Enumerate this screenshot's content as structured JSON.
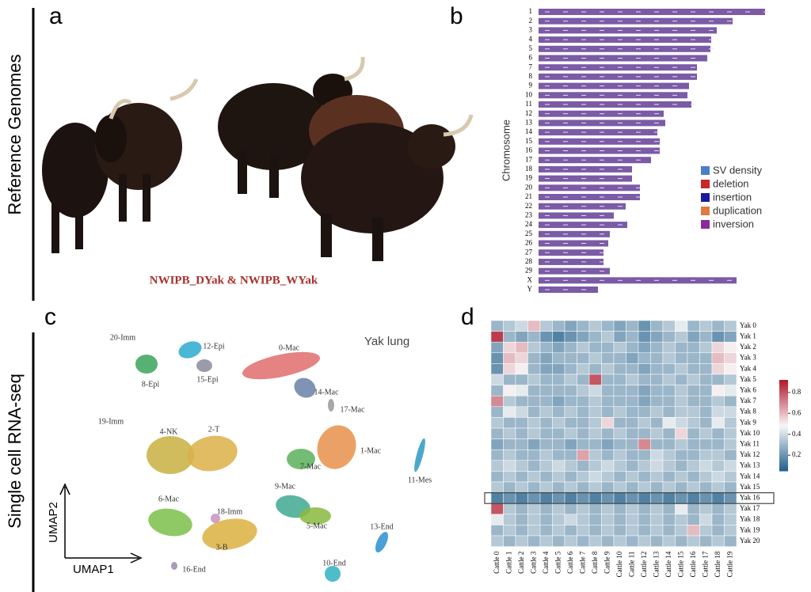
{
  "panel_letters": [
    "a",
    "b",
    "c",
    "d"
  ],
  "side_labels": [
    "Reference Genomes",
    "Single cell RNA-seq"
  ],
  "image_caption": "NWIPB_DYak  &  NWIPB_WYak",
  "chart_data": [
    {
      "type": "bar",
      "orientation": "horizontal",
      "ylabel": "Chromosome",
      "color": "#7b5aa6",
      "categories": [
        "1",
        "2",
        "3",
        "4",
        "5",
        "6",
        "7",
        "8",
        "9",
        "10",
        "11",
        "12",
        "13",
        "14",
        "15",
        "16",
        "17",
        "18",
        "19",
        "20",
        "21",
        "22",
        "23",
        "24",
        "25",
        "26",
        "27",
        "28",
        "29",
        "X",
        "Y"
      ],
      "values": [
        286,
        245,
        225,
        218,
        217,
        213,
        200,
        200,
        190,
        188,
        193,
        158,
        160,
        150,
        153,
        153,
        142,
        118,
        118,
        128,
        128,
        110,
        95,
        112,
        90,
        88,
        82,
        82,
        90,
        250,
        75
      ],
      "legend": [
        {
          "name": "SV density",
          "color": "#4a7fc8"
        },
        {
          "name": "deletion",
          "color": "#c82828"
        },
        {
          "name": "insertion",
          "color": "#1a1aa0"
        },
        {
          "name": "duplication",
          "color": "#e07840"
        },
        {
          "name": "inversion",
          "color": "#8a2a9a"
        }
      ]
    },
    {
      "type": "umap",
      "title": "Yak lung",
      "xlabel": "UMAP1",
      "ylabel": "UMAP2",
      "clusters": [
        {
          "name": "20-Imm",
          "color": "#333333"
        },
        {
          "name": "12-Epi",
          "color": "#2aaad0"
        },
        {
          "name": "8-Epi",
          "color": "#3aa35a"
        },
        {
          "name": "15-Epi",
          "color": "#8a8a9a"
        },
        {
          "name": "0-Mac",
          "color": "#e06c6c"
        },
        {
          "name": "14-Mac",
          "color": "#6a80a8"
        },
        {
          "name": "17-Mac",
          "color": "#999999"
        },
        {
          "name": "19-Imm",
          "color": "#555555"
        },
        {
          "name": "4-NK",
          "color": "#c8b040"
        },
        {
          "name": "2-T",
          "color": "#dcb048"
        },
        {
          "name": "1-Mac",
          "color": "#e8914a"
        },
        {
          "name": "7-Mac",
          "color": "#5ab05a"
        },
        {
          "name": "11-Mes",
          "color": "#2a9ac0"
        },
        {
          "name": "9-Mac",
          "color": "#40a890"
        },
        {
          "name": "5-Mac",
          "color": "#8ab840"
        },
        {
          "name": "6-Mac",
          "color": "#7bbf4a"
        },
        {
          "name": "18-Imm",
          "color": "#c890c0"
        },
        {
          "name": "3-B",
          "color": "#dcb040"
        },
        {
          "name": "13-End",
          "color": "#2a8fd0"
        },
        {
          "name": "16-End",
          "color": "#9a8aa8"
        },
        {
          "name": "10-End",
          "color": "#30b0c0"
        }
      ]
    },
    {
      "type": "heatmap",
      "rows": [
        "Yak 0",
        "Yak 1",
        "Yak 2",
        "Yak 3",
        "Yak 4",
        "Yak 5",
        "Yak 6",
        "Yak 7",
        "Yak 8",
        "Yak 9",
        "Yak 10",
        "Yak 11",
        "Yak 12",
        "Yak 13",
        "Yak 14",
        "Yak 15",
        "Yak 16",
        "Yak 17",
        "Yak 18",
        "Yak 19",
        "Yak 20"
      ],
      "columns": [
        "Cattle 0",
        "Cattle 1",
        "Cattle 2",
        "Cattle 3",
        "Cattle 4",
        "Cattle 5",
        "Cattle 6",
        "Cattle 7",
        "Cattle 8",
        "Cattle 9",
        "Cattle 10",
        "Cattle 11",
        "Cattle 12",
        "Cattle 13",
        "Cattle 14",
        "Cattle 15",
        "Cattle 16",
        "Cattle 17",
        "Cattle 18",
        "Cattle 19"
      ],
      "values": [
        [
          0.3,
          0.35,
          0.4,
          0.6,
          0.35,
          0.3,
          0.25,
          0.3,
          0.35,
          0.3,
          0.25,
          0.3,
          0.2,
          0.3,
          0.35,
          0.45,
          0.3,
          0.35,
          0.3,
          0.35
        ],
        [
          0.85,
          0.3,
          0.25,
          0.3,
          0.2,
          0.15,
          0.2,
          0.25,
          0.3,
          0.35,
          0.25,
          0.3,
          0.2,
          0.25,
          0.3,
          0.35,
          0.25,
          0.3,
          0.2,
          0.25
        ],
        [
          0.25,
          0.55,
          0.6,
          0.35,
          0.3,
          0.25,
          0.3,
          0.35,
          0.3,
          0.3,
          0.35,
          0.3,
          0.25,
          0.3,
          0.35,
          0.3,
          0.3,
          0.35,
          0.55,
          0.5
        ],
        [
          0.2,
          0.6,
          0.55,
          0.3,
          0.25,
          0.3,
          0.3,
          0.3,
          0.35,
          0.3,
          0.3,
          0.25,
          0.3,
          0.3,
          0.35,
          0.3,
          0.3,
          0.3,
          0.6,
          0.55
        ],
        [
          0.2,
          0.55,
          0.5,
          0.3,
          0.25,
          0.25,
          0.3,
          0.35,
          0.3,
          0.35,
          0.3,
          0.3,
          0.25,
          0.3,
          0.3,
          0.35,
          0.3,
          0.3,
          0.55,
          0.5
        ],
        [
          0.4,
          0.3,
          0.3,
          0.35,
          0.3,
          0.3,
          0.35,
          0.3,
          0.8,
          0.3,
          0.3,
          0.35,
          0.3,
          0.3,
          0.35,
          0.3,
          0.35,
          0.3,
          0.3,
          0.35
        ],
        [
          0.3,
          0.5,
          0.45,
          0.3,
          0.3,
          0.3,
          0.3,
          0.35,
          0.4,
          0.3,
          0.3,
          0.3,
          0.25,
          0.3,
          0.3,
          0.35,
          0.3,
          0.3,
          0.5,
          0.45
        ],
        [
          0.7,
          0.35,
          0.3,
          0.3,
          0.3,
          0.25,
          0.3,
          0.3,
          0.35,
          0.3,
          0.3,
          0.3,
          0.25,
          0.3,
          0.3,
          0.35,
          0.3,
          0.3,
          0.35,
          0.3
        ],
        [
          0.3,
          0.45,
          0.4,
          0.3,
          0.35,
          0.3,
          0.35,
          0.3,
          0.35,
          0.3,
          0.35,
          0.3,
          0.3,
          0.35,
          0.3,
          0.35,
          0.35,
          0.3,
          0.4,
          0.4
        ],
        [
          0.35,
          0.3,
          0.3,
          0.35,
          0.3,
          0.35,
          0.3,
          0.3,
          0.35,
          0.55,
          0.3,
          0.3,
          0.35,
          0.3,
          0.45,
          0.4,
          0.35,
          0.3,
          0.45,
          0.35
        ],
        [
          0.3,
          0.35,
          0.3,
          0.35,
          0.3,
          0.3,
          0.35,
          0.3,
          0.35,
          0.3,
          0.35,
          0.3,
          0.3,
          0.35,
          0.3,
          0.55,
          0.3,
          0.35,
          0.3,
          0.35
        ],
        [
          0.25,
          0.3,
          0.3,
          0.25,
          0.3,
          0.3,
          0.25,
          0.3,
          0.3,
          0.25,
          0.3,
          0.3,
          0.7,
          0.3,
          0.3,
          0.35,
          0.3,
          0.3,
          0.3,
          0.35
        ],
        [
          0.3,
          0.35,
          0.3,
          0.3,
          0.35,
          0.3,
          0.3,
          0.65,
          0.35,
          0.3,
          0.35,
          0.3,
          0.3,
          0.4,
          0.35,
          0.3,
          0.3,
          0.35,
          0.35,
          0.3
        ],
        [
          0.35,
          0.4,
          0.35,
          0.3,
          0.35,
          0.4,
          0.35,
          0.3,
          0.35,
          0.4,
          0.35,
          0.3,
          0.35,
          0.4,
          0.35,
          0.3,
          0.35,
          0.4,
          0.35,
          0.4
        ],
        [
          0.3,
          0.35,
          0.3,
          0.35,
          0.3,
          0.35,
          0.3,
          0.35,
          0.4,
          0.35,
          0.3,
          0.35,
          0.3,
          0.35,
          0.3,
          0.35,
          0.3,
          0.35,
          0.4,
          0.35
        ],
        [
          0.35,
          0.3,
          0.35,
          0.3,
          0.35,
          0.3,
          0.35,
          0.3,
          0.35,
          0.3,
          0.35,
          0.3,
          0.35,
          0.3,
          0.35,
          0.3,
          0.35,
          0.3,
          0.35,
          0.3
        ],
        [
          0.15,
          0.2,
          0.15,
          0.2,
          0.15,
          0.2,
          0.15,
          0.2,
          0.15,
          0.2,
          0.15,
          0.2,
          0.15,
          0.2,
          0.15,
          0.2,
          0.15,
          0.2,
          0.15,
          0.2
        ],
        [
          0.8,
          0.35,
          0.3,
          0.35,
          0.3,
          0.35,
          0.3,
          0.35,
          0.3,
          0.35,
          0.3,
          0.35,
          0.3,
          0.35,
          0.3,
          0.45,
          0.3,
          0.35,
          0.3,
          0.35
        ],
        [
          0.45,
          0.35,
          0.3,
          0.35,
          0.3,
          0.35,
          0.4,
          0.35,
          0.3,
          0.35,
          0.3,
          0.35,
          0.3,
          0.35,
          0.3,
          0.35,
          0.3,
          0.4,
          0.3,
          0.35
        ],
        [
          0.3,
          0.35,
          0.3,
          0.35,
          0.3,
          0.35,
          0.3,
          0.35,
          0.3,
          0.35,
          0.3,
          0.35,
          0.3,
          0.35,
          0.3,
          0.35,
          0.6,
          0.35,
          0.3,
          0.35
        ],
        [
          0.35,
          0.3,
          0.35,
          0.3,
          0.35,
          0.3,
          0.35,
          0.3,
          0.35,
          0.3,
          0.35,
          0.3,
          0.35,
          0.3,
          0.35,
          0.3,
          0.35,
          0.3,
          0.35,
          0.3
        ]
      ],
      "clim": [
        0.05,
        0.92
      ],
      "colorbar_ticks": [
        0.2,
        0.4,
        0.6,
        0.8
      ],
      "highlight_row": 16
    }
  ]
}
